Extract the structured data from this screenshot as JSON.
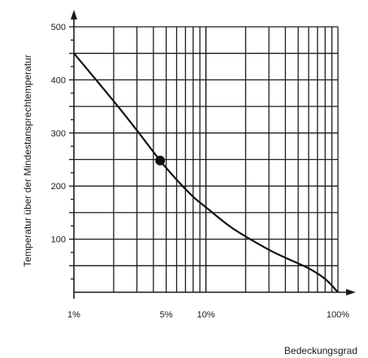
{
  "chart_data": {
    "type": "line",
    "title": "",
    "xlabel": "Bedeckungsgrad",
    "ylabel": "Temperatur über der Mindestansprechtemperatur",
    "x_scale": "log",
    "xlim": [
      1,
      100
    ],
    "ylim": [
      0,
      500
    ],
    "grid": true,
    "x_ticks": [
      {
        "value": 1,
        "label": "1%"
      },
      {
        "value": 5,
        "label": "5%"
      },
      {
        "value": 10,
        "label": "10%"
      },
      {
        "value": 100,
        "label": "100%"
      }
    ],
    "y_ticks": [
      {
        "value": 100,
        "label": "100"
      },
      {
        "value": 200,
        "label": "200"
      },
      {
        "value": 300,
        "label": "300"
      },
      {
        "value": 400,
        "label": "400"
      },
      {
        "value": 500,
        "label": "500"
      }
    ],
    "series": [
      {
        "x": [
          1,
          2,
          3,
          4.5,
          6,
          8,
          10,
          15,
          20,
          30,
          40,
          60,
          80,
          100
        ],
        "y": [
          450,
          360,
          305,
          248,
          212,
          180,
          160,
          125,
          105,
          80,
          65,
          45,
          25,
          0
        ]
      }
    ],
    "marker": {
      "x": 4.5,
      "y": 248
    },
    "colors": {
      "line": "#111111",
      "grid": "#1a1a1a",
      "background": "#ffffff"
    }
  }
}
